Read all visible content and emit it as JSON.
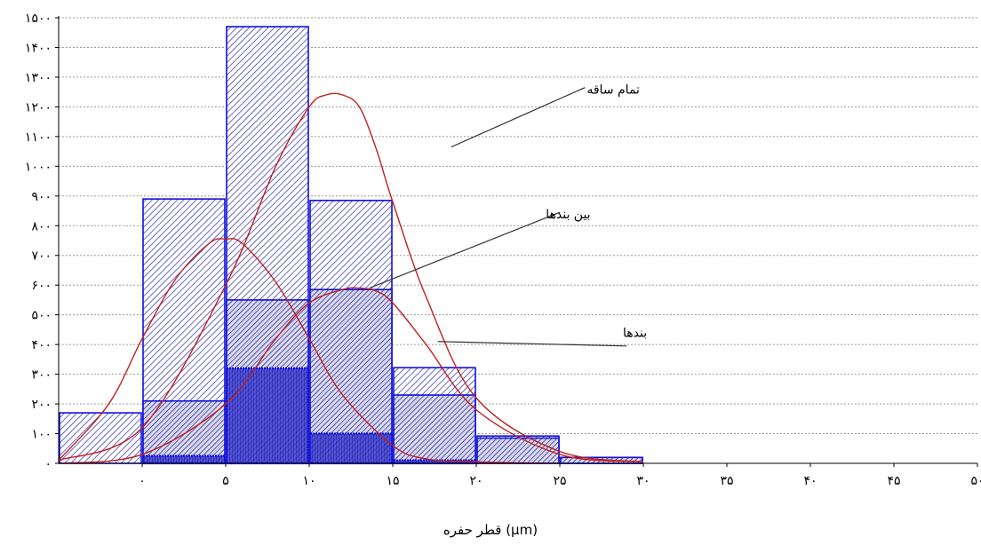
{
  "chart_data": {
    "type": "bar",
    "xlabel": "قطر حفره (µm)",
    "x_ticks": [
      "۰",
      "۵",
      "۱۰",
      "۱۵",
      "۲۰",
      "۲۵",
      "۳۰",
      "۳۵",
      "۴۰",
      "۴۵",
      "۵۰"
    ],
    "x_tick_values": [
      0,
      5,
      10,
      15,
      20,
      25,
      30,
      35,
      40,
      45,
      50
    ],
    "xlim": [
      -5,
      50
    ],
    "y_ticks": [
      "۰",
      "۱۰۰",
      "۲۰۰",
      "۳۰۰",
      "۴۰۰",
      "۵۰۰",
      "۶۰۰",
      "۷۰۰",
      "۸۰۰",
      "۹۰۰",
      "۱۰۰۰",
      "۱۱۰۰",
      "۱۲۰۰",
      "۱۳۰۰",
      "۱۴۰۰",
      "۱۵۰۰"
    ],
    "y_tick_values": [
      0,
      100,
      200,
      300,
      400,
      500,
      600,
      700,
      800,
      900,
      1000,
      1100,
      1200,
      1300,
      1400,
      1500
    ],
    "ylim": [
      0,
      1500
    ],
    "grid": true,
    "series": [
      {
        "name": "تمام ساقه",
        "bars": [
          {
            "x0": -5,
            "x1": 0,
            "value": 170
          },
          {
            "x0": 0,
            "x1": 5,
            "value": 890
          },
          {
            "x0": 5,
            "x1": 10,
            "value": 1470
          },
          {
            "x0": 10,
            "x1": 15,
            "value": 885
          },
          {
            "x0": 15,
            "x1": 20,
            "value": 322
          },
          {
            "x0": 20,
            "x1": 25,
            "value": 92
          },
          {
            "x0": 25,
            "x1": 30,
            "value": 20
          }
        ],
        "fit_curve": {
          "x": [
            -5,
            0,
            5,
            8,
            10,
            11,
            12,
            13,
            14,
            15,
            17,
            20,
            25,
            30
          ],
          "y": [
            10,
            120,
            600,
            1000,
            1200,
            1240,
            1240,
            1200,
            1060,
            880,
            560,
            220,
            40,
            5
          ]
        }
      },
      {
        "name": "بین بندها",
        "bars": [
          {
            "x0": 0,
            "x1": 5,
            "value": 210
          },
          {
            "x0": 5,
            "x1": 10,
            "value": 550
          },
          {
            "x0": 10,
            "x1": 15,
            "value": 585
          },
          {
            "x0": 15,
            "x1": 20,
            "value": 230
          },
          {
            "x0": 20,
            "x1": 25,
            "value": 85
          },
          {
            "x0": 25,
            "x1": 30,
            "value": 20
          }
        ],
        "fit_curve": {
          "x": [
            -5,
            0,
            5,
            8,
            10,
            12,
            13,
            14,
            15,
            17,
            20,
            25,
            30
          ],
          "y": [
            0,
            30,
            200,
            420,
            540,
            585,
            590,
            580,
            540,
            400,
            180,
            30,
            5
          ]
        }
      },
      {
        "name": "بندها",
        "bars": [
          {
            "x0": 0,
            "x1": 5,
            "value": 25
          },
          {
            "x0": 5,
            "x1": 10,
            "value": 320
          },
          {
            "x0": 10,
            "x1": 15,
            "value": 100
          },
          {
            "x0": 15,
            "x1": 20,
            "value": 10
          }
        ],
        "fit_curve": {
          "x": [
            -5,
            -2,
            0,
            2,
            4,
            5,
            6,
            8,
            10,
            12,
            15,
            17,
            20,
            25
          ],
          "y": [
            10,
            200,
            420,
            620,
            740,
            755,
            740,
            610,
            420,
            230,
            60,
            15,
            5,
            0
          ]
        }
      }
    ],
    "annotations": [
      "تمام ساقه",
      "بین بندها",
      "بندها"
    ]
  },
  "colors": {
    "bar_stroke": "#1010e0",
    "bar_hatch": "#1a1aa0",
    "curve": "#c0201e",
    "leader": "#303030",
    "grid": "#9a9a9a"
  }
}
